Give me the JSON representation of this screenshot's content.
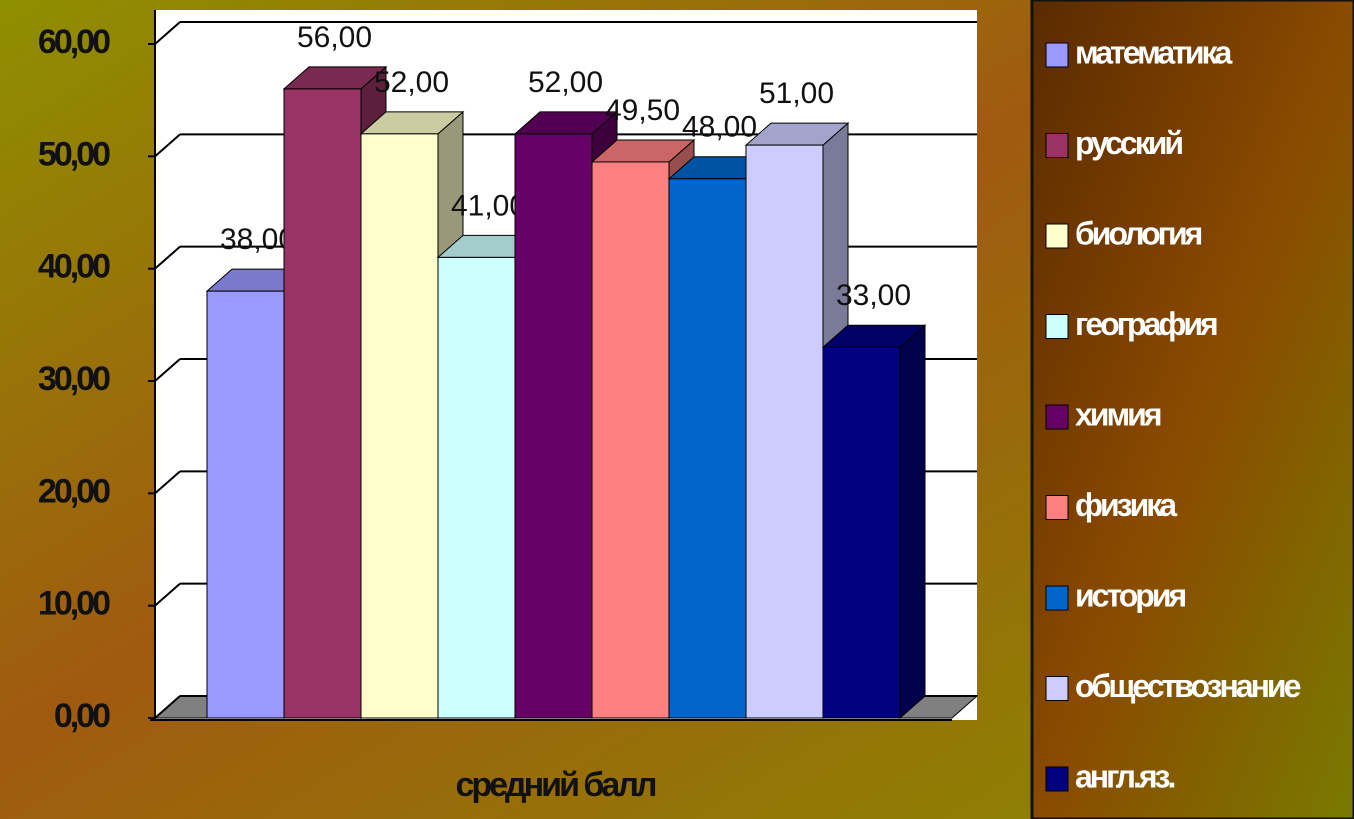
{
  "chart_data": {
    "type": "bar3d",
    "categories": [
      "средний балл"
    ],
    "series": [
      {
        "name": "математика",
        "color": "#9999ff",
        "values": [
          38
        ],
        "value_labels": [
          "38,00"
        ]
      },
      {
        "name": "русский",
        "color": "#993366",
        "values": [
          56
        ],
        "value_labels": [
          "56,00"
        ]
      },
      {
        "name": "биология",
        "color": "#ffffcc",
        "values": [
          52
        ],
        "value_labels": [
          "52,00"
        ]
      },
      {
        "name": "география",
        "color": "#ccffff",
        "values": [
          41
        ],
        "value_labels": [
          "41,00"
        ]
      },
      {
        "name": "химия",
        "color": "#660066",
        "values": [
          52
        ],
        "value_labels": [
          "52,00"
        ]
      },
      {
        "name": "физика",
        "color": "#ff8080",
        "values": [
          49.5
        ],
        "value_labels": [
          "49,50"
        ]
      },
      {
        "name": "история",
        "color": "#0066cc",
        "values": [
          48
        ],
        "value_labels": [
          "48,00"
        ]
      },
      {
        "name": "обществознание",
        "color": "#ccccff",
        "values": [
          51
        ],
        "value_labels": [
          "51,00"
        ]
      },
      {
        "name": "англ.яз.",
        "color": "#000080",
        "values": [
          33
        ],
        "value_labels": [
          "33,00"
        ]
      }
    ],
    "ylim": [
      0,
      60
    ],
    "yticks": [
      {
        "value": 0,
        "label": "0,00"
      },
      {
        "value": 10,
        "label": "10,00"
      },
      {
        "value": 20,
        "label": "20,00"
      },
      {
        "value": 30,
        "label": "30,00"
      },
      {
        "value": 40,
        "label": "40,00"
      },
      {
        "value": 50,
        "label": "50,00"
      },
      {
        "value": 60,
        "label": "60,00"
      }
    ],
    "grid": true,
    "legend": "right"
  }
}
